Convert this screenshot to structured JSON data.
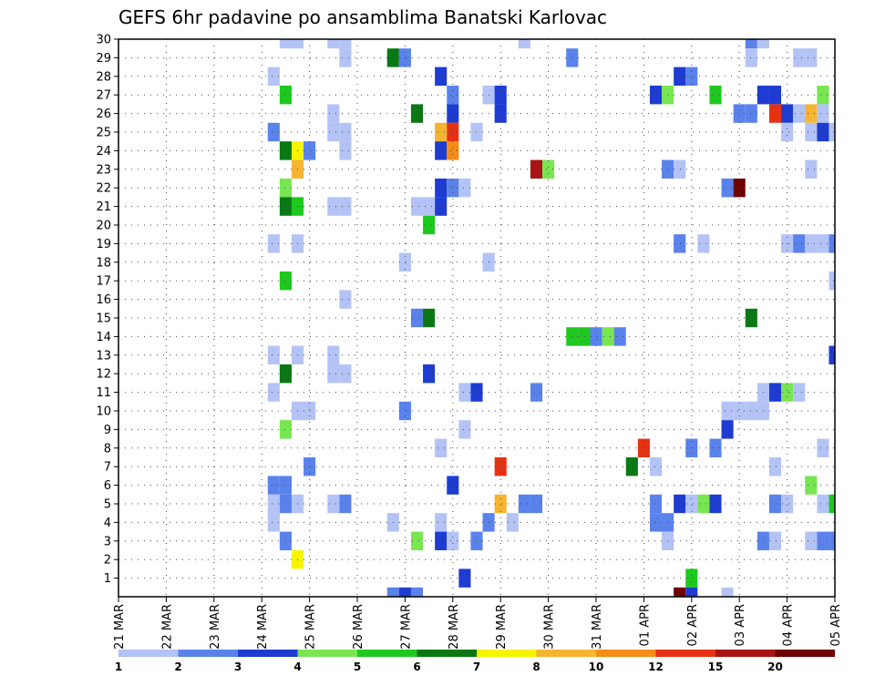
{
  "chart_data": {
    "type": "heatmap",
    "title": "GEFS 6hr padavine po ansamblima Banatski Karlovac",
    "x_tick_labels": [
      "21 MAR",
      "22 MAR",
      "23 MAR",
      "24 MAR",
      "25 MAR",
      "26 MAR",
      "27 MAR",
      "28 MAR",
      "29 MAR",
      "30 MAR",
      "31 MAR",
      "01 APR",
      "02 APR",
      "03 APR",
      "04 APR",
      "05 APR"
    ],
    "xlim": [
      0,
      60
    ],
    "y_tick_labels": [
      "1",
      "2",
      "3",
      "4",
      "5",
      "6",
      "7",
      "8",
      "9",
      "10",
      "11",
      "12",
      "13",
      "14",
      "15",
      "16",
      "17",
      "18",
      "19",
      "20",
      "21",
      "22",
      "23",
      "24",
      "25",
      "26",
      "27",
      "28",
      "29",
      "30"
    ],
    "ylim": [
      0,
      30
    ],
    "grid": true,
    "legend": {
      "placement": "bottom",
      "labels": [
        "1",
        "2",
        "3",
        "4",
        "5",
        "6",
        "7",
        "8",
        "10",
        "12",
        "15",
        "20"
      ],
      "colors": [
        "#b4c3f5",
        "#5a82eb",
        "#1e3cd2",
        "#78e650",
        "#1ec81e",
        "#0a7814",
        "#f5f500",
        "#f5b432",
        "#f58c14",
        "#e63214",
        "#aa1414",
        "#6e0000"
      ]
    },
    "colors": [
      "#b4c3f5",
      "#5a82eb",
      "#1e3cd2",
      "#78e650",
      "#1ec81e",
      "#0a7814",
      "#f5f500",
      "#f5b432",
      "#f58c14",
      "#e63214",
      "#aa1414",
      "#6e0000"
    ],
    "cells": [
      [
        14,
        30,
        0
      ],
      [
        15,
        30,
        0
      ],
      [
        18,
        30,
        0
      ],
      [
        19,
        30,
        0
      ],
      [
        34,
        30,
        0
      ],
      [
        53,
        30,
        1
      ],
      [
        54,
        30,
        0
      ],
      [
        23,
        29,
        5
      ],
      [
        24,
        29,
        1
      ],
      [
        19,
        29,
        0
      ],
      [
        38,
        29,
        1
      ],
      [
        53,
        29,
        0
      ],
      [
        57,
        29,
        0
      ],
      [
        58,
        29,
        0
      ],
      [
        13,
        28,
        0
      ],
      [
        27,
        28,
        2
      ],
      [
        47,
        28,
        2
      ],
      [
        48,
        28,
        1
      ],
      [
        14,
        27,
        4
      ],
      [
        28,
        27,
        1
      ],
      [
        31,
        27,
        0
      ],
      [
        32,
        27,
        2
      ],
      [
        45,
        27,
        2
      ],
      [
        46,
        27,
        3
      ],
      [
        50,
        27,
        4
      ],
      [
        54,
        27,
        2
      ],
      [
        55,
        27,
        2
      ],
      [
        59,
        27,
        3
      ],
      [
        25,
        26,
        5
      ],
      [
        28,
        26,
        2
      ],
      [
        32,
        26,
        2
      ],
      [
        18,
        26,
        0
      ],
      [
        52,
        26,
        1
      ],
      [
        53,
        26,
        1
      ],
      [
        55,
        26,
        9
      ],
      [
        56,
        26,
        2
      ],
      [
        57,
        26,
        0
      ],
      [
        58,
        26,
        7
      ],
      [
        59,
        26,
        0
      ],
      [
        13,
        25,
        1
      ],
      [
        18,
        25,
        0
      ],
      [
        19,
        25,
        0
      ],
      [
        27,
        25,
        7
      ],
      [
        28,
        25,
        9
      ],
      [
        30,
        25,
        0
      ],
      [
        56,
        25,
        0
      ],
      [
        58,
        25,
        0
      ],
      [
        59,
        25,
        2
      ],
      [
        60,
        25,
        0
      ],
      [
        14,
        24,
        5
      ],
      [
        15,
        24,
        6
      ],
      [
        16,
        24,
        1
      ],
      [
        19,
        24,
        0
      ],
      [
        27,
        24,
        2
      ],
      [
        28,
        24,
        8
      ],
      [
        15,
        23,
        7
      ],
      [
        35,
        23,
        10
      ],
      [
        36,
        23,
        3
      ],
      [
        46,
        23,
        1
      ],
      [
        47,
        23,
        0
      ],
      [
        58,
        23,
        0
      ],
      [
        14,
        22,
        3
      ],
      [
        27,
        22,
        2
      ],
      [
        28,
        22,
        1
      ],
      [
        29,
        22,
        0
      ],
      [
        51,
        22,
        1
      ],
      [
        52,
        22,
        11
      ],
      [
        14,
        21,
        5
      ],
      [
        15,
        21,
        4
      ],
      [
        18,
        21,
        0
      ],
      [
        19,
        21,
        0
      ],
      [
        25,
        21,
        0
      ],
      [
        26,
        21,
        0
      ],
      [
        27,
        21,
        2
      ],
      [
        26,
        20,
        4
      ],
      [
        13,
        19,
        0
      ],
      [
        15,
        19,
        0
      ],
      [
        47,
        19,
        1
      ],
      [
        49,
        19,
        0
      ],
      [
        56,
        19,
        0
      ],
      [
        57,
        19,
        1
      ],
      [
        58,
        19,
        0
      ],
      [
        59,
        19,
        0
      ],
      [
        60,
        19,
        1
      ],
      [
        24,
        18,
        0
      ],
      [
        31,
        18,
        0
      ],
      [
        14,
        17,
        4
      ],
      [
        60,
        17,
        0
      ],
      [
        19,
        16,
        0
      ],
      [
        25,
        15,
        1
      ],
      [
        26,
        15,
        5
      ],
      [
        53,
        15,
        5
      ],
      [
        38,
        14,
        4
      ],
      [
        39,
        14,
        4
      ],
      [
        40,
        14,
        1
      ],
      [
        41,
        14,
        3
      ],
      [
        42,
        14,
        1
      ],
      [
        13,
        13,
        0
      ],
      [
        15,
        13,
        0
      ],
      [
        18,
        13,
        0
      ],
      [
        60,
        13,
        2
      ],
      [
        14,
        12,
        5
      ],
      [
        18,
        12,
        0
      ],
      [
        19,
        12,
        0
      ],
      [
        26,
        12,
        2
      ],
      [
        13,
        11,
        0
      ],
      [
        29,
        11,
        0
      ],
      [
        30,
        11,
        2
      ],
      [
        35,
        11,
        1
      ],
      [
        54,
        11,
        0
      ],
      [
        55,
        11,
        2
      ],
      [
        56,
        11,
        3
      ],
      [
        57,
        11,
        0
      ],
      [
        15,
        10,
        0
      ],
      [
        16,
        10,
        0
      ],
      [
        24,
        10,
        1
      ],
      [
        51,
        10,
        0
      ],
      [
        52,
        10,
        0
      ],
      [
        53,
        10,
        0
      ],
      [
        54,
        10,
        0
      ],
      [
        14,
        9,
        3
      ],
      [
        29,
        9,
        0
      ],
      [
        51,
        9,
        2
      ],
      [
        27,
        8,
        0
      ],
      [
        44,
        8,
        9
      ],
      [
        48,
        8,
        1
      ],
      [
        50,
        8,
        1
      ],
      [
        59,
        8,
        0
      ],
      [
        16,
        7,
        1
      ],
      [
        32,
        7,
        9
      ],
      [
        43,
        7,
        5
      ],
      [
        45,
        7,
        0
      ],
      [
        55,
        7,
        0
      ],
      [
        14,
        6,
        1
      ],
      [
        13,
        6,
        1
      ],
      [
        28,
        6,
        2
      ],
      [
        58,
        6,
        3
      ],
      [
        13,
        5,
        0
      ],
      [
        14,
        5,
        1
      ],
      [
        15,
        5,
        0
      ],
      [
        18,
        5,
        0
      ],
      [
        19,
        5,
        1
      ],
      [
        32,
        5,
        7
      ],
      [
        34,
        5,
        1
      ],
      [
        35,
        5,
        1
      ],
      [
        45,
        5,
        1
      ],
      [
        47,
        5,
        2
      ],
      [
        48,
        5,
        0
      ],
      [
        49,
        5,
        3
      ],
      [
        50,
        5,
        2
      ],
      [
        55,
        5,
        1
      ],
      [
        56,
        5,
        0
      ],
      [
        59,
        5,
        0
      ],
      [
        60,
        5,
        4
      ],
      [
        13,
        4,
        0
      ],
      [
        23,
        4,
        0
      ],
      [
        27,
        4,
        0
      ],
      [
        31,
        4,
        1
      ],
      [
        33,
        4,
        0
      ],
      [
        45,
        4,
        1
      ],
      [
        46,
        4,
        1
      ],
      [
        14,
        3,
        1
      ],
      [
        25,
        3,
        3
      ],
      [
        27,
        3,
        2
      ],
      [
        28,
        3,
        0
      ],
      [
        30,
        3,
        1
      ],
      [
        46,
        3,
        0
      ],
      [
        54,
        3,
        1
      ],
      [
        55,
        3,
        0
      ],
      [
        58,
        3,
        0
      ],
      [
        59,
        3,
        1
      ],
      [
        60,
        3,
        1
      ],
      [
        15,
        2,
        6
      ],
      [
        29,
        1,
        2
      ],
      [
        48,
        1,
        4
      ],
      [
        23,
        0,
        1
      ],
      [
        24,
        0,
        2
      ],
      [
        25,
        0,
        1
      ],
      [
        47,
        0,
        11
      ],
      [
        48,
        0,
        2
      ],
      [
        51,
        0,
        0
      ]
    ]
  }
}
